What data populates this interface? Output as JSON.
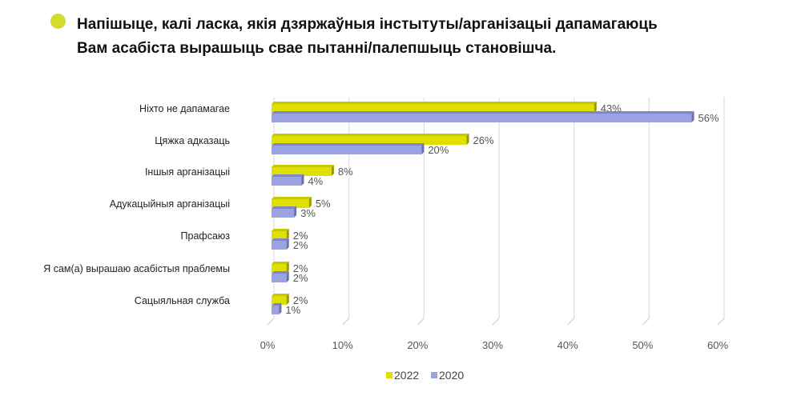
{
  "title_line1": "Напішыце, калі ласка, якія дзяржаўныя інстытуты/арганізацыі дапамагаюць",
  "title_line2": "Вам асабіста вырашыць свае пытанні/палепшыць становішча.",
  "colors": {
    "accent_dot": "#d4dc2a",
    "series_2022": "#dfe000",
    "series_2020": "#9aa2e2"
  },
  "chart_data": {
    "type": "bar",
    "orientation": "horizontal",
    "style": "3d",
    "categories": [
      "Ніхто не дапамагае",
      "Цяжка адказаць",
      "Іншыя арганізацыі",
      "Адукацыйныя арганізацыі",
      "Прафсаюз",
      "Я сам(а) вырашаю асабістыя праблемы",
      "Сацыяльная служба"
    ],
    "series": [
      {
        "name": "2022",
        "values": [
          43,
          26,
          8,
          5,
          2,
          2,
          2
        ],
        "labels": [
          "43%",
          "26%",
          "8%",
          "5%",
          "2%",
          "2%",
          "2%"
        ]
      },
      {
        "name": "2020",
        "values": [
          56,
          20,
          4,
          3,
          2,
          2,
          1
        ],
        "labels": [
          "56%",
          "20%",
          "4%",
          "3%",
          "2%",
          "2%",
          "1%"
        ]
      }
    ],
    "xlim": [
      0,
      60
    ],
    "xticks": [
      "0%",
      "10%",
      "20%",
      "30%",
      "40%",
      "50%",
      "60%"
    ],
    "grid": true,
    "legend": "bottom"
  }
}
